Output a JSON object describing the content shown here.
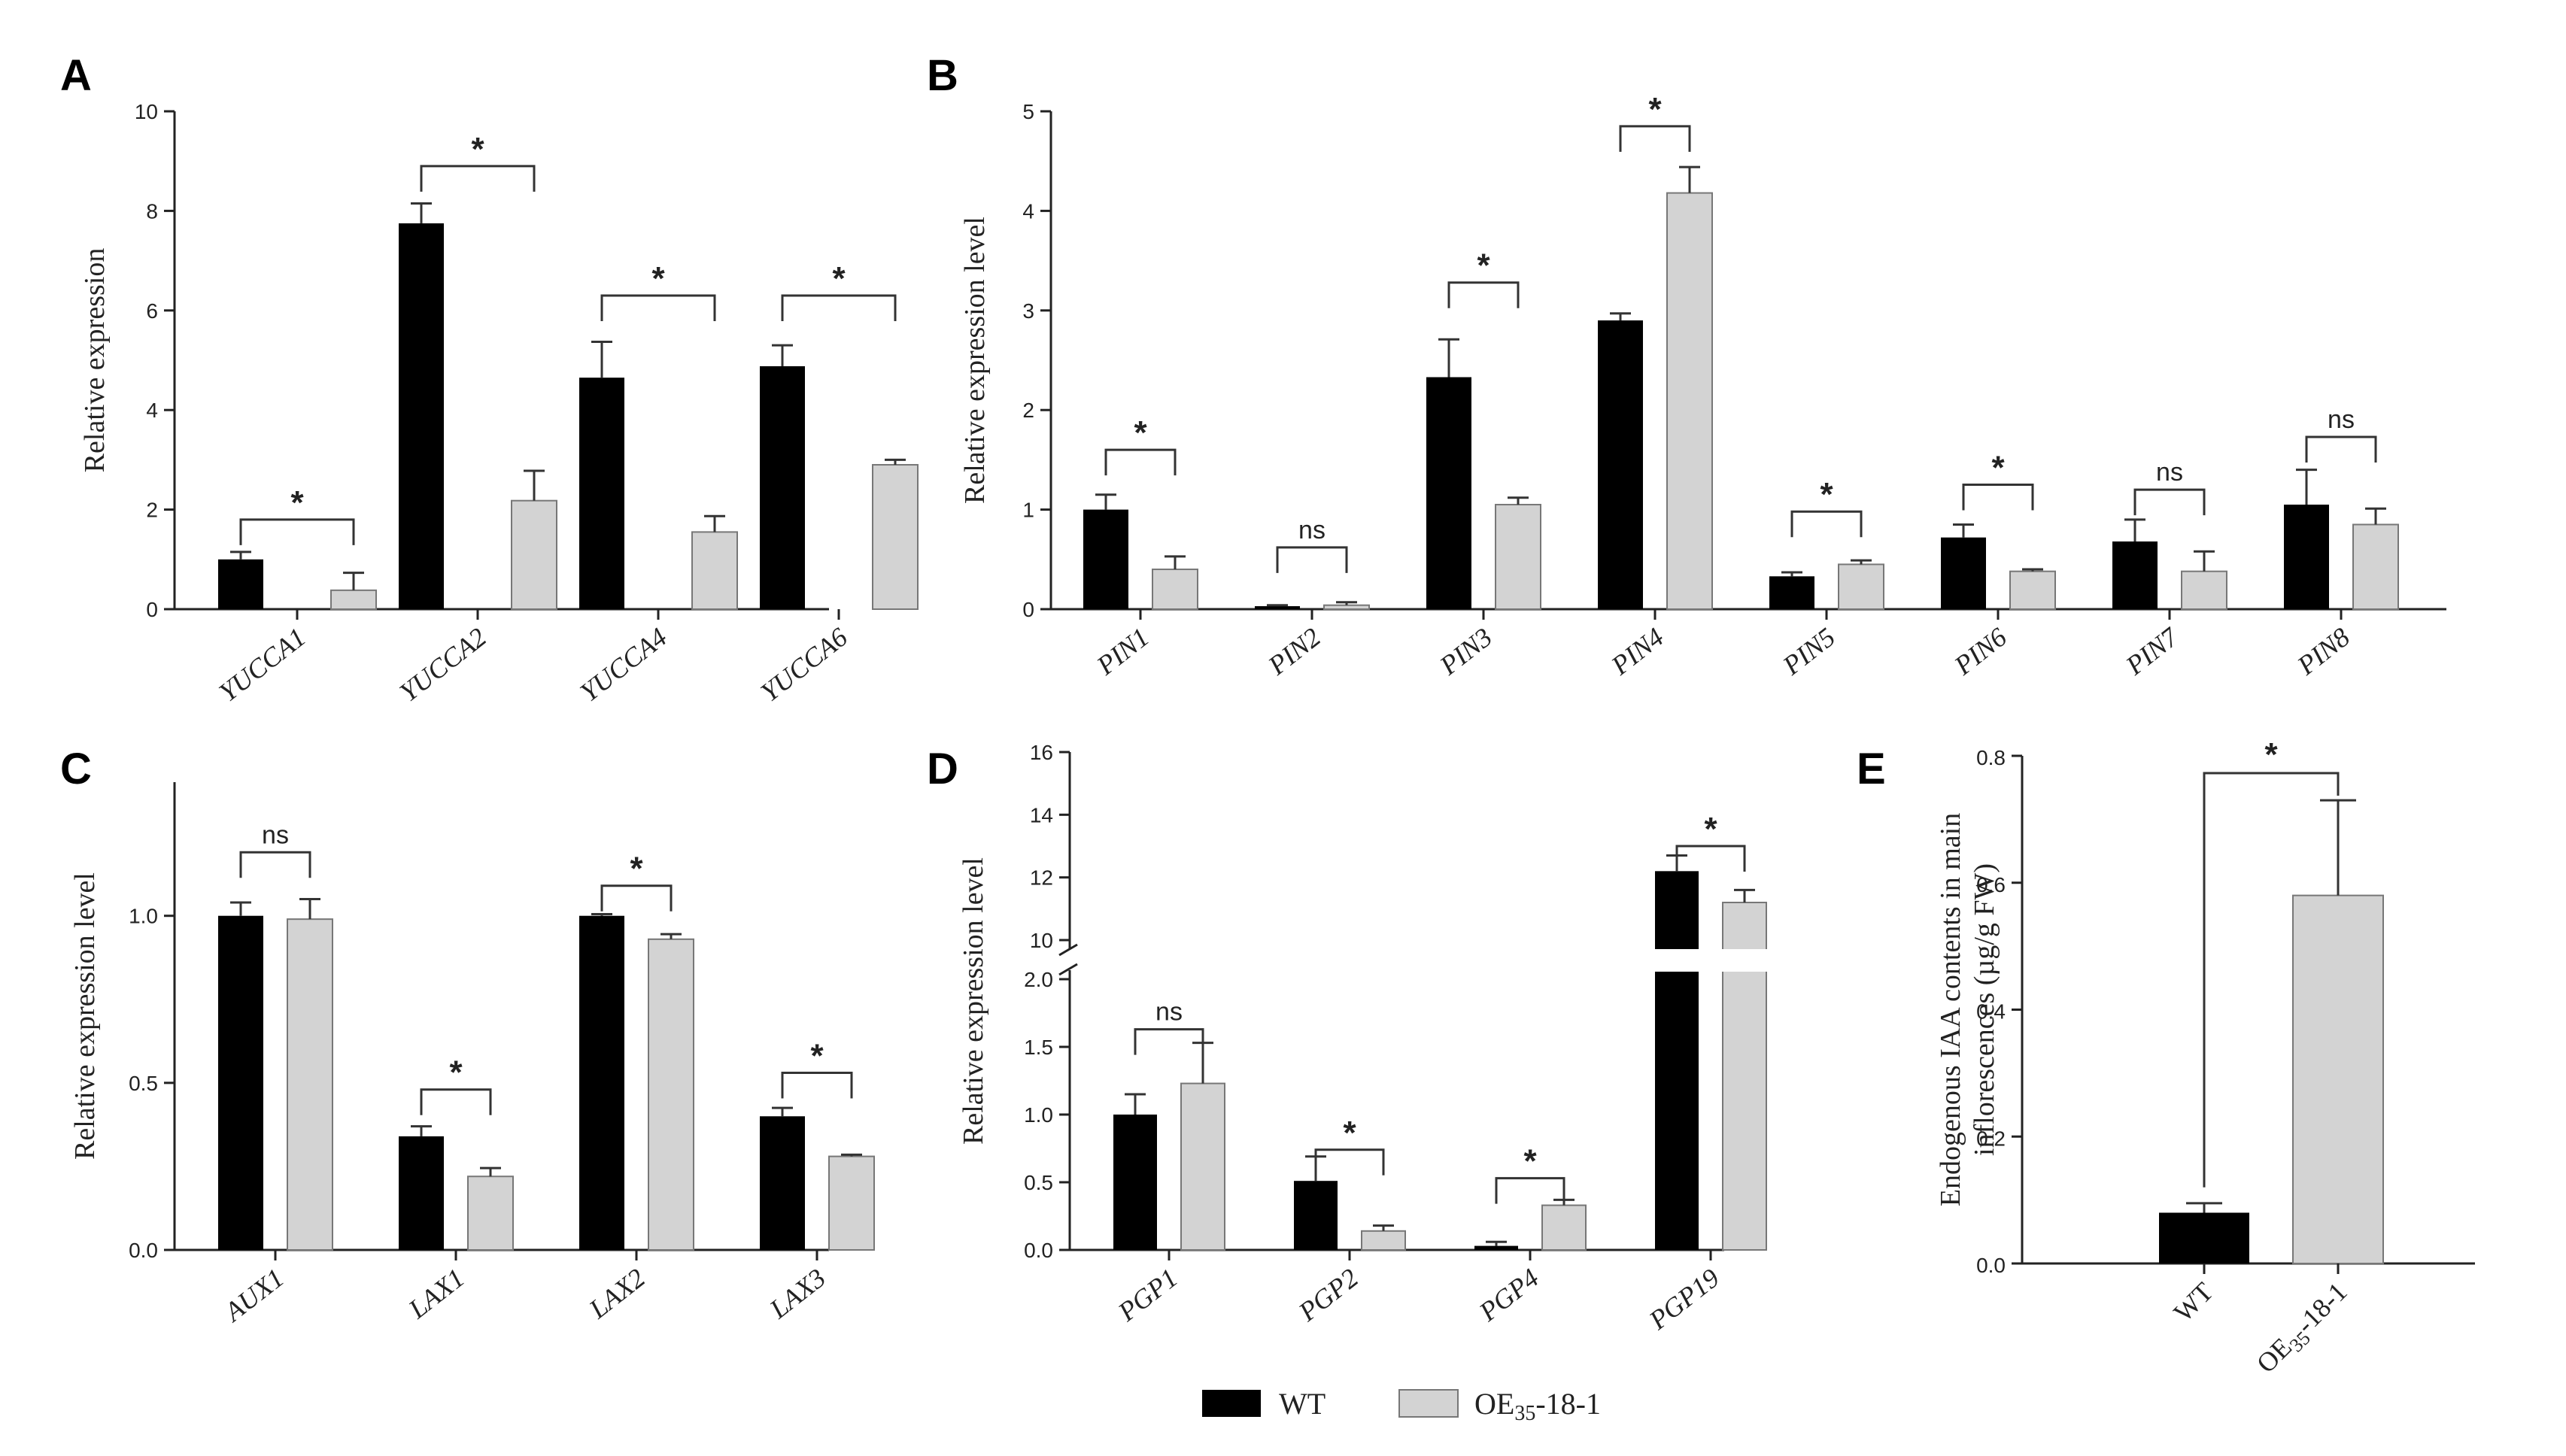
{
  "chart_data": [
    {
      "panel": "A",
      "type": "bar",
      "ylabel": "Relative expression",
      "ylim": [
        0,
        10
      ],
      "yticks": [
        "0",
        "2",
        "4",
        "6",
        "8",
        "10"
      ],
      "categories": [
        "YUCCA1",
        "YUCCA2",
        "YUCCA4",
        "YUCCA6"
      ],
      "series": [
        {
          "name": "WT",
          "values": [
            1.0,
            7.75,
            4.65,
            4.88
          ],
          "errors": [
            0.15,
            0.4,
            0.72,
            0.42
          ]
        },
        {
          "name": "OE35-18-1",
          "values": [
            0.38,
            2.18,
            1.55,
            2.9
          ],
          "errors": [
            0.35,
            0.6,
            0.32,
            0.1
          ]
        }
      ],
      "significance": [
        "*",
        "*",
        "*",
        "*"
      ],
      "sig_heights": [
        1.8,
        8.9,
        6.3,
        6.3
      ]
    },
    {
      "panel": "B",
      "type": "bar",
      "ylabel": "Relative expression level",
      "ylim": [
        0,
        5
      ],
      "yticks": [
        "0",
        "1",
        "2",
        "3",
        "4",
        "5"
      ],
      "categories": [
        "PIN1",
        "PIN2",
        "PIN3",
        "PIN4",
        "PIN5",
        "PIN6",
        "PIN7",
        "PIN8"
      ],
      "series": [
        {
          "name": "WT",
          "values": [
            1.0,
            0.03,
            2.33,
            2.9,
            0.33,
            0.72,
            0.68,
            1.05
          ],
          "errors": [
            0.15,
            0.01,
            0.38,
            0.07,
            0.04,
            0.13,
            0.22,
            0.35
          ]
        },
        {
          "name": "OE35-18-1",
          "values": [
            0.4,
            0.04,
            1.05,
            4.18,
            0.45,
            0.38,
            0.38,
            0.85
          ],
          "errors": [
            0.13,
            0.03,
            0.07,
            0.26,
            0.04,
            0.02,
            0.2,
            0.16
          ]
        }
      ],
      "significance": [
        "*",
        "ns",
        "*",
        "*",
        "*",
        "*",
        "ns",
        "ns"
      ],
      "sig_heights": [
        1.6,
        0.62,
        3.28,
        4.85,
        0.98,
        1.25,
        1.2,
        1.73
      ]
    },
    {
      "panel": "C",
      "type": "bar",
      "ylabel": "Relative expression level",
      "ylim": [
        0,
        1.4
      ],
      "yticks": [
        "0.0",
        "0.5",
        "1.0"
      ],
      "categories": [
        "AUX1",
        "LAX1",
        "LAX2",
        "LAX3"
      ],
      "series": [
        {
          "name": "WT",
          "values": [
            1.0,
            0.34,
            1.0,
            0.4
          ],
          "errors": [
            0.04,
            0.03,
            0.005,
            0.025
          ]
        },
        {
          "name": "OE35-18-1",
          "values": [
            0.99,
            0.22,
            0.93,
            0.28
          ],
          "errors": [
            0.06,
            0.025,
            0.015,
            0.005
          ]
        }
      ],
      "significance": [
        "ns",
        "*",
        "*",
        "*"
      ],
      "sig_heights": [
        1.19,
        0.48,
        1.09,
        0.53
      ]
    },
    {
      "panel": "D",
      "type": "bar",
      "ylabel": "Relative expression level",
      "ylim": [
        0,
        16
      ],
      "axis_break": "2.0 to 10",
      "yticks": [
        "0.0",
        "0.5",
        "1.0",
        "1.5",
        "2.0",
        "10",
        "12",
        "14",
        "16"
      ],
      "categories": [
        "PGP1",
        "PGP2",
        "PGP4",
        "PGP19"
      ],
      "series": [
        {
          "name": "WT",
          "values": [
            1.0,
            0.51,
            0.03,
            12.2
          ],
          "errors": [
            0.15,
            0.18,
            0.03,
            0.5
          ]
        },
        {
          "name": "OE35-18-1",
          "values": [
            1.23,
            0.14,
            0.33,
            11.2
          ],
          "errors": [
            0.3,
            0.04,
            0.04,
            0.4
          ]
        }
      ],
      "significance": [
        "ns",
        "*",
        "*",
        "*"
      ],
      "sig_heights": [
        1.63,
        0.74,
        0.53,
        13.0
      ]
    },
    {
      "panel": "E",
      "type": "bar",
      "ylabel_line1": "Endogenous IAA contents in main",
      "ylabel_line2": "inflorescences (µg/g FW)",
      "ylim": [
        0,
        0.8
      ],
      "yticks": [
        "0.0",
        "0.2",
        "0.4",
        "0.6",
        "0.8"
      ],
      "categories": [
        "WT",
        "OE35-18-1"
      ],
      "values": [
        0.08,
        0.58
      ],
      "errors": [
        0.015,
        0.15
      ],
      "significance": "*"
    }
  ],
  "legend": {
    "wt_label": "WT",
    "oe_label_prefix": "OE",
    "oe_label_sub": "35",
    "oe_label_suffix": "-18-1",
    "wt_color": "#000000",
    "oe_color": "#d3d3d3"
  }
}
